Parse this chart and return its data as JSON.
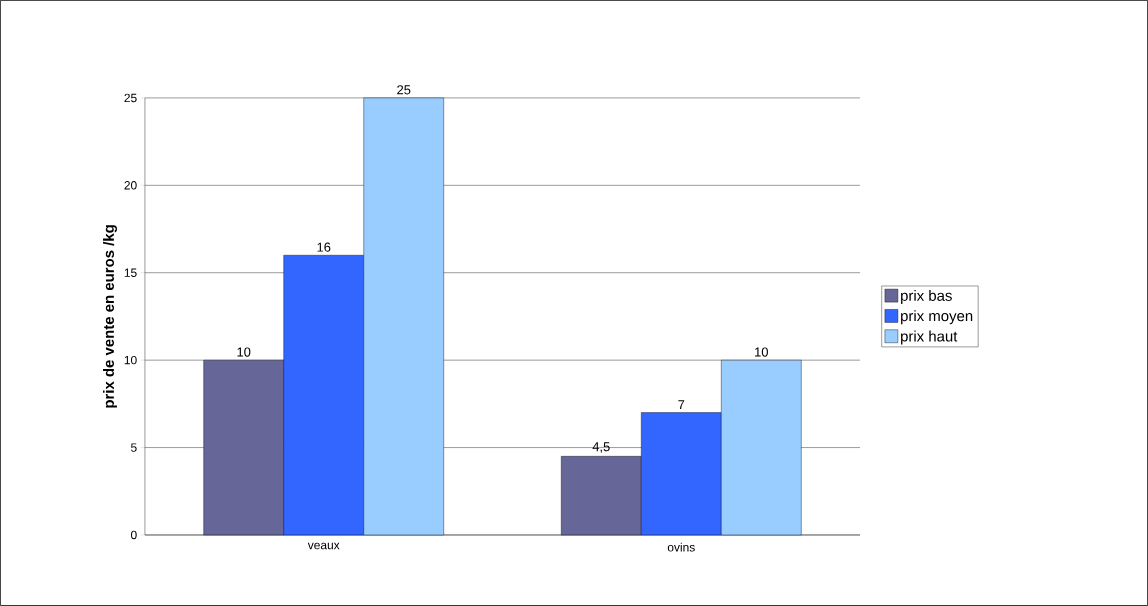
{
  "chart_data": {
    "type": "bar",
    "ylabel": "prix de vente en euros /kg",
    "categories": [
      "veaux",
      "ovins"
    ],
    "series": [
      {
        "name": "prix bas",
        "color": "#666699",
        "values": [
          10,
          4.5
        ],
        "value_labels": [
          "10",
          "4,5"
        ]
      },
      {
        "name": "prix moyen",
        "color": "#3366ff",
        "values": [
          16,
          7
        ],
        "value_labels": [
          "16",
          "7"
        ]
      },
      {
        "name": "prix haut",
        "color": "#99ccff",
        "values": [
          25,
          10
        ],
        "value_labels": [
          "25",
          "10"
        ]
      }
    ],
    "ylim": [
      0,
      25
    ],
    "yticks": [
      0,
      5,
      10,
      15,
      20,
      25
    ],
    "grid": "y",
    "legend": "right"
  }
}
